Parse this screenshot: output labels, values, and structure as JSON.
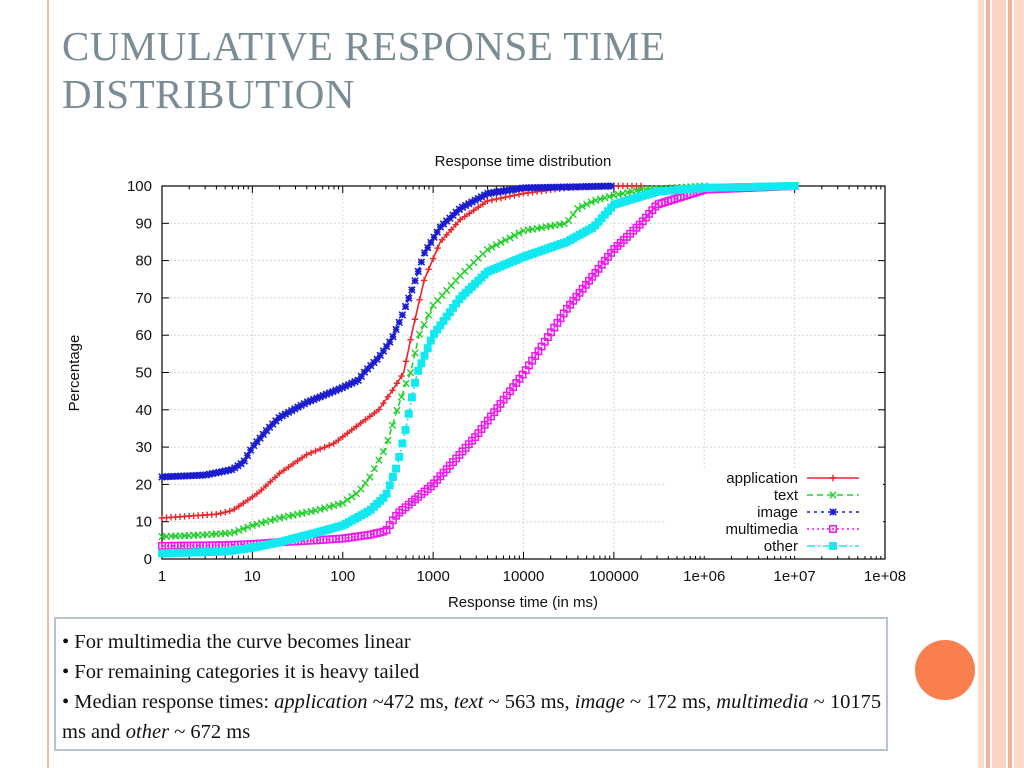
{
  "slide": {
    "title_line1": "CUMULATIVE RESPONSE TIME",
    "title_line2": "DISTRIBUTION",
    "bullets": [
      {
        "segments": [
          {
            "text": "• For multimedia the curve becomes linear",
            "italic": false
          }
        ]
      },
      {
        "segments": [
          {
            "text": "• For remaining categories it is heavy tailed",
            "italic": false
          }
        ]
      },
      {
        "segments": [
          {
            "text": "• Median response times: ",
            "italic": false
          },
          {
            "text": "application",
            "italic": true
          },
          {
            "text": " ~472 ms, ",
            "italic": false
          },
          {
            "text": "text",
            "italic": true
          },
          {
            "text": " ~ 563 ms, ",
            "italic": false
          },
          {
            "text": "image",
            "italic": true
          },
          {
            "text": " ~ 172 ms, ",
            "italic": false
          },
          {
            "text": "multimedia",
            "italic": true
          },
          {
            "text": " ~ 10175 ms and ",
            "italic": false
          },
          {
            "text": "other",
            "italic": true
          },
          {
            "text": " ~ 672 ms",
            "italic": false
          }
        ]
      }
    ],
    "colors": {
      "title": "#7a8d96",
      "accent": "#f97f4f",
      "rule": "#f4b9a3",
      "box_border": "#b7c2d5"
    }
  },
  "chart_data": {
    "type": "line",
    "title": "Response time distribution",
    "xlabel": "Response time (in ms)",
    "ylabel": "Percentage",
    "x_scale": "log",
    "xlim": [
      1,
      100000000
    ],
    "ylim": [
      0,
      100
    ],
    "x_ticks": [
      "1",
      "10",
      "100",
      "1000",
      "10000",
      "100000",
      "1e+06",
      "1e+07",
      "1e+08"
    ],
    "y_ticks": [
      "0",
      "10",
      "20",
      "30",
      "40",
      "50",
      "60",
      "70",
      "80",
      "90",
      "100"
    ],
    "grid": true,
    "legend_position": "bottom-right",
    "series": [
      {
        "name": "application",
        "color": "#e8262c",
        "marker": "plus",
        "dash": "",
        "x": [
          1,
          2,
          4,
          6,
          8,
          12,
          20,
          40,
          80,
          150,
          250,
          350,
          420,
          472,
          600,
          800,
          1200,
          2000,
          4000,
          10000,
          30000,
          100000,
          200000
        ],
        "y": [
          11,
          11.5,
          12,
          13,
          15,
          18,
          23,
          28,
          31,
          36,
          40,
          45,
          48,
          50,
          62,
          75,
          85,
          91,
          96,
          98,
          99.5,
          100,
          100
        ]
      },
      {
        "name": "text",
        "color": "#22d12c",
        "marker": "x",
        "dash": "6,4",
        "x": [
          1,
          3,
          6,
          10,
          20,
          50,
          100,
          150,
          200,
          300,
          400,
          500,
          563,
          700,
          1000,
          2000,
          4000,
          10000,
          30000,
          40000,
          60000,
          100000,
          200000,
          1000000
        ],
        "y": [
          6,
          6.5,
          7,
          9,
          11,
          13,
          15,
          18,
          22,
          30,
          40,
          47,
          50,
          60,
          68,
          76,
          83,
          88,
          90,
          94,
          96,
          97.5,
          99,
          100
        ]
      },
      {
        "name": "image",
        "color": "#1c1ccf",
        "marker": "star",
        "dash": "3,4",
        "x": [
          1,
          3,
          6,
          8,
          10,
          15,
          20,
          40,
          80,
          100,
          150,
          172,
          250,
          350,
          450,
          600,
          800,
          1200,
          2000,
          4000,
          10000,
          100000
        ],
        "y": [
          22,
          22.5,
          24,
          26,
          30,
          35,
          38,
          42,
          45,
          46,
          48,
          50,
          54,
          59,
          65,
          73,
          82,
          89,
          94,
          98,
          99.5,
          100
        ]
      },
      {
        "name": "multimedia",
        "color": "#ee18ee",
        "marker": "square",
        "dash": "2,3",
        "x": [
          1,
          5,
          10,
          20,
          50,
          100,
          200,
          300,
          350,
          400,
          1000,
          3000,
          10175,
          30000,
          100000,
          200000,
          300000,
          1000000,
          10000000
        ],
        "y": [
          3.5,
          3.7,
          4,
          4.5,
          5,
          5.5,
          6.5,
          7.5,
          10,
          12,
          20,
          33,
          50,
          67,
          83,
          90,
          95,
          99,
          100
        ]
      },
      {
        "name": "other",
        "color": "#12e8f0",
        "marker": "square",
        "dash": "8,3,2,3",
        "x": [
          1,
          5,
          10,
          20,
          50,
          100,
          200,
          300,
          400,
          500,
          600,
          672,
          1000,
          2000,
          4000,
          10000,
          30000,
          60000,
          100000,
          300000,
          1000000,
          10000000
        ],
        "y": [
          1.5,
          2,
          3,
          4.5,
          7,
          9,
          13,
          17,
          25,
          35,
          45,
          50,
          60,
          70,
          77,
          81,
          85,
          89,
          95,
          98.5,
          99.5,
          100
        ]
      }
    ]
  }
}
